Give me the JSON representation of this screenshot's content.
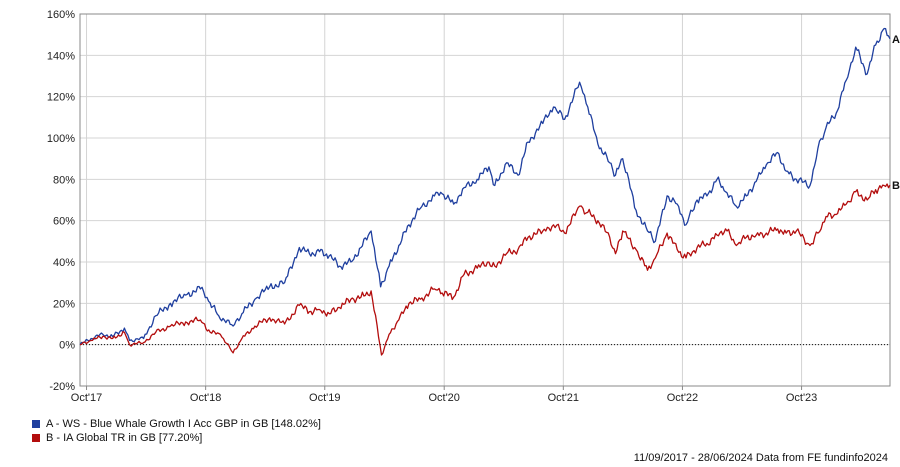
{
  "chart_data": {
    "type": "line",
    "ylim": [
      -20,
      160
    ],
    "y_ticks": [
      "160%",
      "140%",
      "120%",
      "100%",
      "80%",
      "60%",
      "40%",
      "20%",
      "0%",
      "-20%"
    ],
    "y_tick_values": [
      160,
      140,
      120,
      100,
      80,
      60,
      40,
      20,
      0,
      -20
    ],
    "x_ticks": [
      "Oct'17",
      "Oct'18",
      "Oct'19",
      "Oct'20",
      "Oct'21",
      "Oct'22",
      "Oct'23"
    ],
    "x_tick_dates": [
      "2017-10-01",
      "2018-10-01",
      "2019-10-01",
      "2020-10-01",
      "2021-10-01",
      "2022-10-01",
      "2023-10-01"
    ],
    "x_range": [
      "2017-09-11",
      "2024-06-28"
    ],
    "grid": true,
    "zero_line": true,
    "series": [
      {
        "name": "A - WS - Blue Whale Growth I Acc GBP in GB [148.02%]",
        "end_label": "A",
        "color": "#1f3f9f",
        "points": [
          [
            "2017-09-11",
            0
          ],
          [
            "2017-10-15",
            3
          ],
          [
            "2017-11-20",
            5
          ],
          [
            "2017-12-20",
            4
          ],
          [
            "2018-01-25",
            8
          ],
          [
            "2018-02-10",
            2
          ],
          [
            "2018-03-25",
            3
          ],
          [
            "2018-05-01",
            14
          ],
          [
            "2018-06-15",
            20
          ],
          [
            "2018-08-01",
            24
          ],
          [
            "2018-09-15",
            27
          ],
          [
            "2018-10-10",
            21
          ],
          [
            "2018-11-10",
            14
          ],
          [
            "2018-12-24",
            9
          ],
          [
            "2019-01-20",
            15
          ],
          [
            "2019-03-01",
            22
          ],
          [
            "2019-04-15",
            28
          ],
          [
            "2019-05-31",
            30
          ],
          [
            "2019-07-15",
            47
          ],
          [
            "2019-08-15",
            44
          ],
          [
            "2019-09-15",
            45
          ],
          [
            "2019-10-15",
            43
          ],
          [
            "2019-11-15",
            38
          ],
          [
            "2019-12-20",
            40
          ],
          [
            "2020-01-20",
            47
          ],
          [
            "2020-02-20",
            55
          ],
          [
            "2020-03-20",
            28
          ],
          [
            "2020-04-15",
            38
          ],
          [
            "2020-05-15",
            48
          ],
          [
            "2020-06-15",
            58
          ],
          [
            "2020-07-20",
            66
          ],
          [
            "2020-09-01",
            72
          ],
          [
            "2020-09-25",
            73
          ],
          [
            "2020-10-30",
            68
          ],
          [
            "2020-12-01",
            76
          ],
          [
            "2021-01-10",
            80
          ],
          [
            "2021-02-15",
            86
          ],
          [
            "2021-03-05",
            77
          ],
          [
            "2021-04-10",
            88
          ],
          [
            "2021-05-15",
            82
          ],
          [
            "2021-06-15",
            98
          ],
          [
            "2021-07-30",
            107
          ],
          [
            "2021-09-01",
            115
          ],
          [
            "2021-10-05",
            109
          ],
          [
            "2021-11-20",
            127
          ],
          [
            "2021-12-15",
            115
          ],
          [
            "2022-01-15",
            97
          ],
          [
            "2022-02-20",
            88
          ],
          [
            "2022-03-10",
            82
          ],
          [
            "2022-04-01",
            90
          ],
          [
            "2022-05-12",
            65
          ],
          [
            "2022-06-16",
            55
          ],
          [
            "2022-07-10",
            50
          ],
          [
            "2022-08-15",
            72
          ],
          [
            "2022-09-15",
            68
          ],
          [
            "2022-10-12",
            58
          ],
          [
            "2022-11-15",
            70
          ],
          [
            "2022-12-15",
            72
          ],
          [
            "2023-01-15",
            80
          ],
          [
            "2023-02-10",
            74
          ],
          [
            "2023-03-15",
            67
          ],
          [
            "2023-04-15",
            72
          ],
          [
            "2023-05-15",
            79
          ],
          [
            "2023-06-15",
            87
          ],
          [
            "2023-07-20",
            93
          ],
          [
            "2023-08-15",
            84
          ],
          [
            "2023-09-15",
            80
          ],
          [
            "2023-10-27",
            77
          ],
          [
            "2023-11-20",
            95
          ],
          [
            "2023-12-15",
            105
          ],
          [
            "2024-01-15",
            112
          ],
          [
            "2024-02-15",
            128
          ],
          [
            "2024-03-15",
            144
          ],
          [
            "2024-04-19",
            131
          ],
          [
            "2024-05-15",
            145
          ],
          [
            "2024-06-10",
            153
          ],
          [
            "2024-06-28",
            148.02
          ]
        ]
      },
      {
        "name": "B - IA Global TR in GB [77.20%]",
        "end_label": "B",
        "color": "#b30d0d",
        "points": [
          [
            "2017-09-11",
            0
          ],
          [
            "2017-10-15",
            2
          ],
          [
            "2017-11-20",
            4
          ],
          [
            "2017-12-20",
            3
          ],
          [
            "2018-01-25",
            6
          ],
          [
            "2018-02-10",
            0
          ],
          [
            "2018-03-25",
            1
          ],
          [
            "2018-05-01",
            6
          ],
          [
            "2018-06-15",
            9
          ],
          [
            "2018-08-01",
            11
          ],
          [
            "2018-09-15",
            12
          ],
          [
            "2018-10-15",
            6
          ],
          [
            "2018-11-15",
            5
          ],
          [
            "2018-12-24",
            -4
          ],
          [
            "2019-01-20",
            3
          ],
          [
            "2019-03-01",
            9
          ],
          [
            "2019-04-15",
            13
          ],
          [
            "2019-05-31",
            10
          ],
          [
            "2019-07-15",
            19
          ],
          [
            "2019-08-15",
            16
          ],
          [
            "2019-09-15",
            17
          ],
          [
            "2019-10-15",
            15
          ],
          [
            "2019-11-15",
            18
          ],
          [
            "2019-12-20",
            22
          ],
          [
            "2020-01-20",
            23
          ],
          [
            "2020-02-20",
            26
          ],
          [
            "2020-03-23",
            -5
          ],
          [
            "2020-04-15",
            5
          ],
          [
            "2020-05-15",
            12
          ],
          [
            "2020-06-15",
            20
          ],
          [
            "2020-07-20",
            22
          ],
          [
            "2020-09-01",
            27
          ],
          [
            "2020-09-25",
            25
          ],
          [
            "2020-10-30",
            23
          ],
          [
            "2020-12-01",
            34
          ],
          [
            "2021-01-10",
            37
          ],
          [
            "2021-02-15",
            40
          ],
          [
            "2021-03-05",
            38
          ],
          [
            "2021-04-10",
            44
          ],
          [
            "2021-05-15",
            46
          ],
          [
            "2021-06-15",
            52
          ],
          [
            "2021-07-30",
            55
          ],
          [
            "2021-09-01",
            58
          ],
          [
            "2021-10-05",
            54
          ],
          [
            "2021-11-20",
            67
          ],
          [
            "2021-12-15",
            64
          ],
          [
            "2022-01-15",
            60
          ],
          [
            "2022-02-20",
            52
          ],
          [
            "2022-03-10",
            44
          ],
          [
            "2022-04-01",
            55
          ],
          [
            "2022-05-12",
            46
          ],
          [
            "2022-06-16",
            36
          ],
          [
            "2022-07-10",
            42
          ],
          [
            "2022-08-15",
            54
          ],
          [
            "2022-09-15",
            46
          ],
          [
            "2022-10-12",
            42
          ],
          [
            "2022-11-15",
            47
          ],
          [
            "2022-12-15",
            49
          ],
          [
            "2023-01-15",
            53
          ],
          [
            "2023-02-10",
            56
          ],
          [
            "2023-03-15",
            48
          ],
          [
            "2023-04-15",
            52
          ],
          [
            "2023-05-15",
            53
          ],
          [
            "2023-06-15",
            54
          ],
          [
            "2023-07-20",
            56
          ],
          [
            "2023-08-15",
            54
          ],
          [
            "2023-09-15",
            55
          ],
          [
            "2023-10-27",
            48
          ],
          [
            "2023-11-20",
            54
          ],
          [
            "2023-12-15",
            62
          ],
          [
            "2024-01-15",
            63
          ],
          [
            "2024-02-15",
            68
          ],
          [
            "2024-03-15",
            74
          ],
          [
            "2024-04-19",
            70
          ],
          [
            "2024-05-15",
            75
          ],
          [
            "2024-06-10",
            77
          ],
          [
            "2024-06-28",
            77.2
          ]
        ]
      }
    ]
  },
  "legend": {
    "items": [
      {
        "label": "A - WS - Blue Whale Growth I Acc GBP in GB [148.02%]",
        "color": "#1f3f9f"
      },
      {
        "label": "B - IA Global TR in GB [77.20%]",
        "color": "#b30d0d"
      }
    ]
  },
  "footer": "11/09/2017 - 28/06/2024 Data from FE fundinfo2024"
}
